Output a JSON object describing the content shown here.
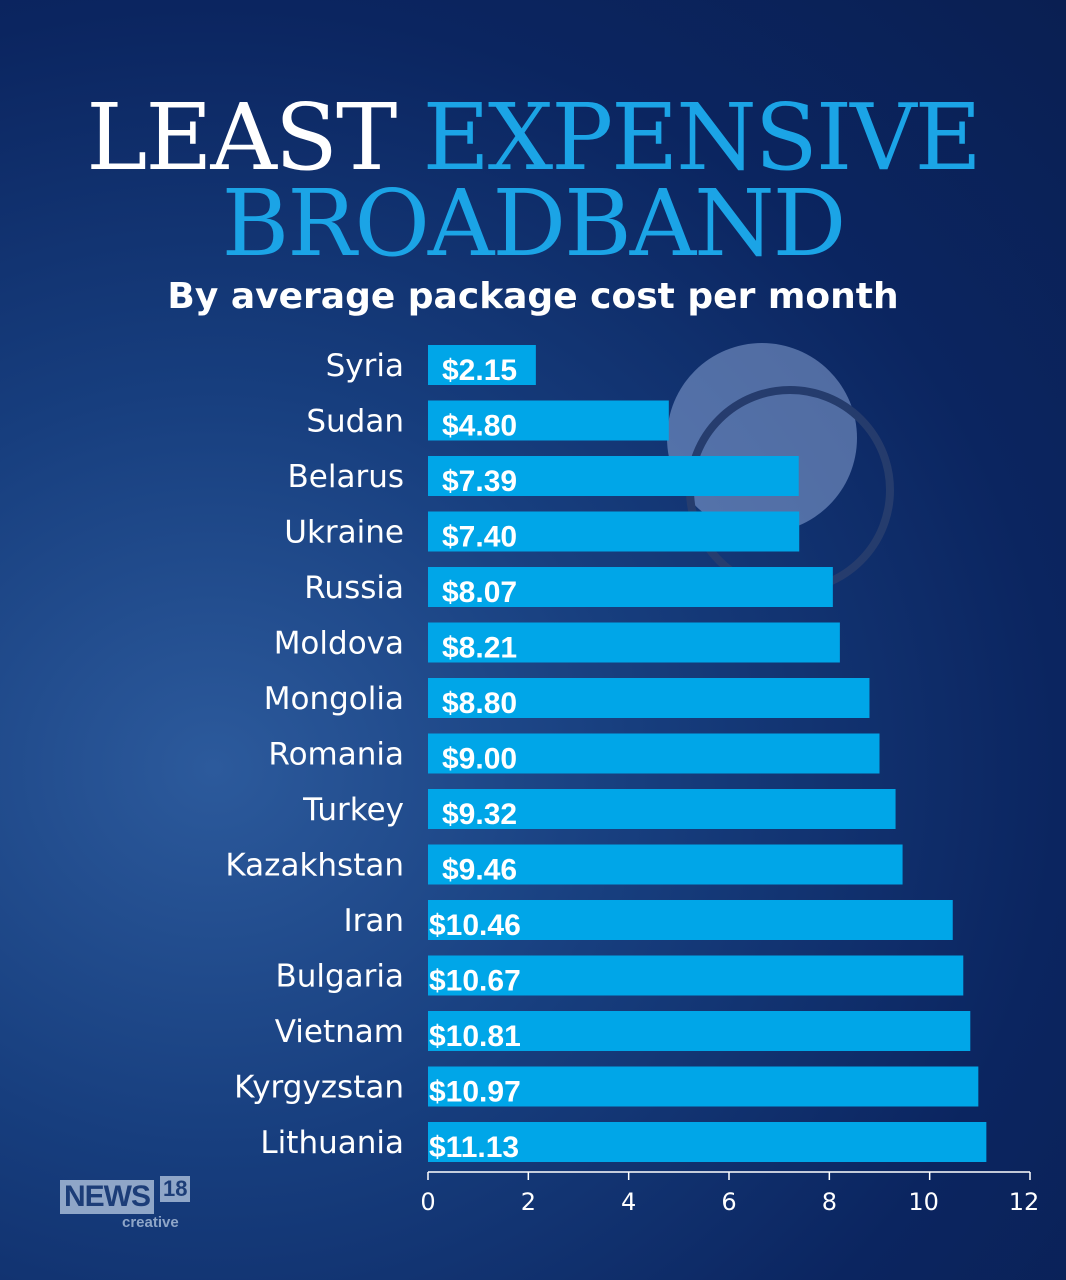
{
  "title": {
    "line1_white": "LEAST",
    "line1_blue": "EXPENSIVE",
    "line2": "BROADBAND"
  },
  "subtitle": "By average package cost per month",
  "logo": {
    "name": "NEWS",
    "number": "18",
    "tag": "creative"
  },
  "colors": {
    "bar": "#00a6e8",
    "title_accent": "#1ba4e6",
    "background": "#0b2560"
  },
  "chart_data": {
    "type": "bar",
    "orientation": "horizontal",
    "categories": [
      "Syria",
      "Sudan",
      "Belarus",
      "Ukraine",
      "Russia",
      "Moldova",
      "Mongolia",
      "Romania",
      "Turkey",
      "Kazakhstan",
      "Iran",
      "Bulgaria",
      "Vietnam",
      "Kyrgyzstan",
      "Lithuania"
    ],
    "values": [
      2.15,
      4.8,
      7.39,
      7.4,
      8.07,
      8.21,
      8.8,
      9.0,
      9.32,
      9.46,
      10.46,
      10.67,
      10.81,
      10.97,
      11.13
    ],
    "data_labels": [
      "$2.15",
      "$4.80",
      "$7.39",
      "$7.40",
      "$8.07",
      "$8.21",
      "$8.80",
      "$9.00",
      "$9.32",
      "$9.46",
      "$10.46",
      "$10.67",
      "$10.81",
      "$10.97",
      "$11.13"
    ],
    "xlim": [
      0,
      12
    ],
    "xticks": [
      "0",
      "2",
      "4",
      "6",
      "8",
      "10",
      "12"
    ],
    "grid": false
  }
}
